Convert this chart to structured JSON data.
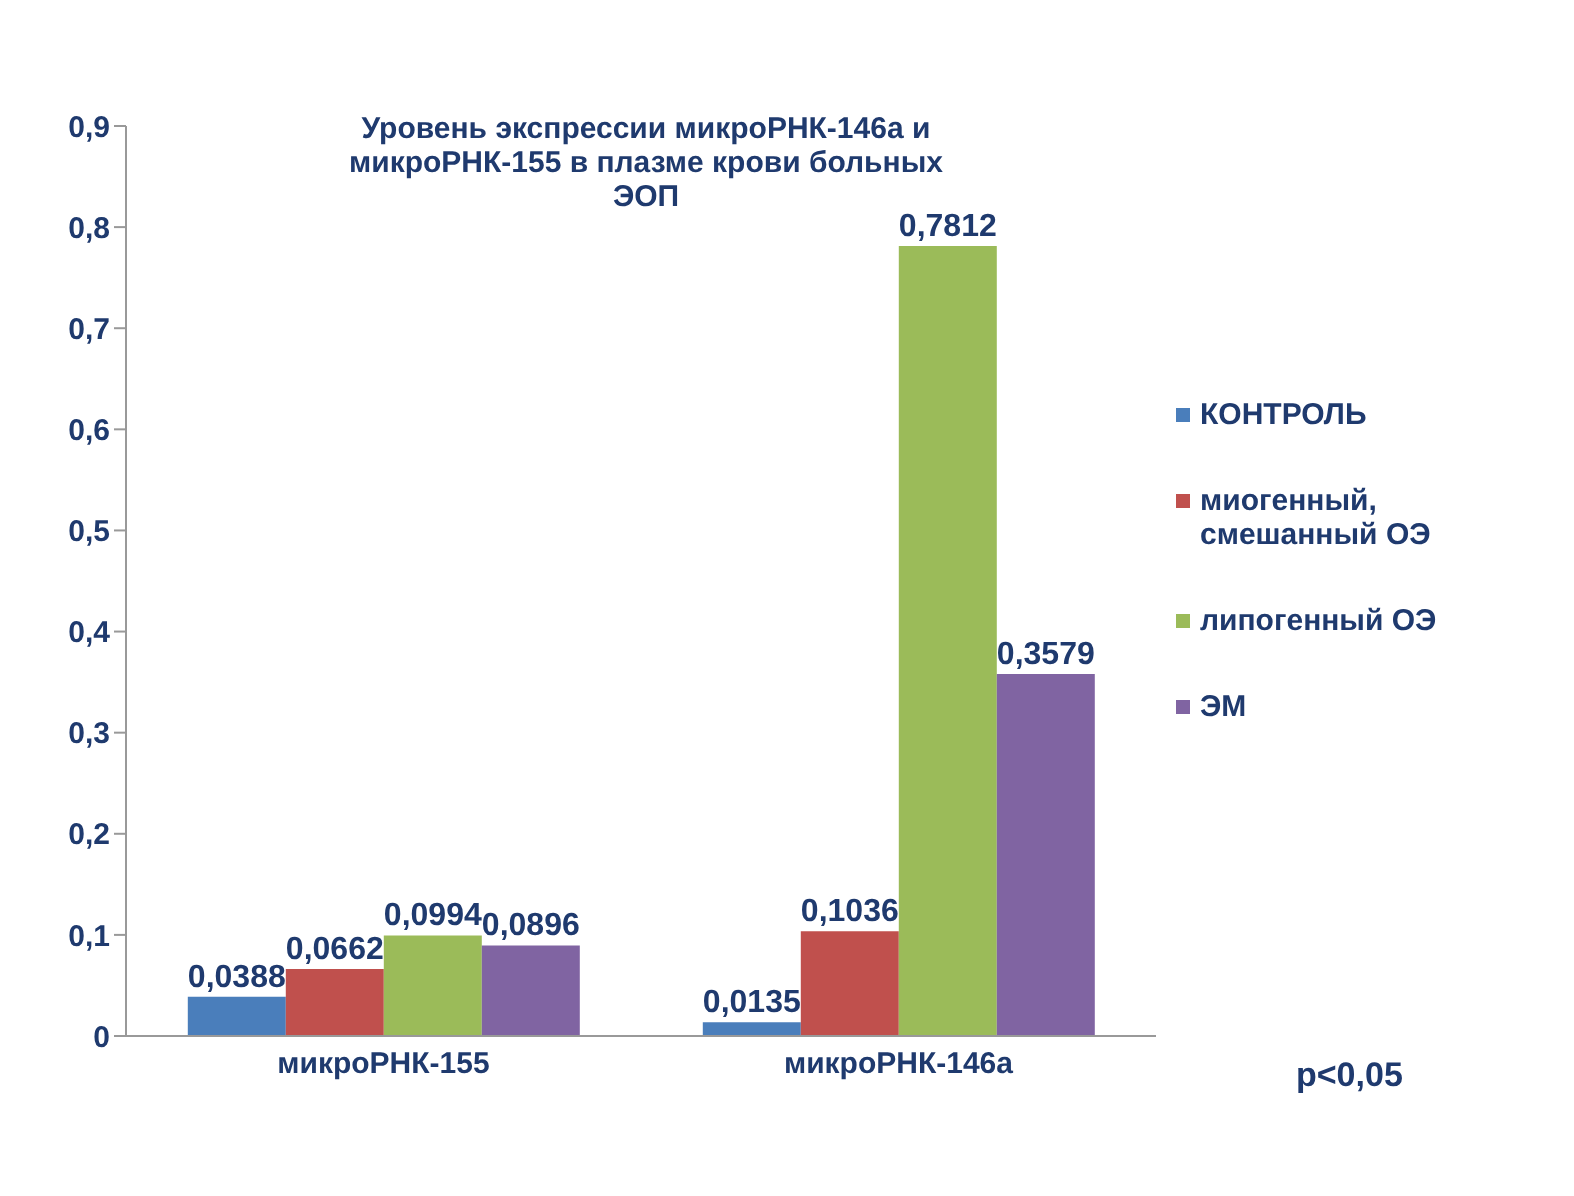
{
  "chart_data": {
    "type": "bar",
    "title": "Уровень экспрессии микроРНК-146а и микроРНК-155 в плазме крови больных ЭОП",
    "categories": [
      "микроРНК-155",
      "микроРНК-146а"
    ],
    "series": [
      {
        "name": "КОНТРОЛЬ",
        "color": "#4a7ebb",
        "values": [
          0.0388,
          0.0135
        ],
        "value_labels": [
          "0,0388",
          "0,0135"
        ]
      },
      {
        "name": "миогенный, смешанный ОЭ",
        "color": "#c0504d",
        "values": [
          0.0662,
          0.1036
        ],
        "value_labels": [
          "0,0662",
          "0,1036"
        ]
      },
      {
        "name": "липогенный ОЭ",
        "color": "#9bbb59",
        "values": [
          0.0994,
          0.7812
        ],
        "value_labels": [
          "0,0994",
          "0,7812"
        ]
      },
      {
        "name": "ЭМ",
        "color": "#8064a2",
        "values": [
          0.0896,
          0.3579
        ],
        "value_labels": [
          "0,0896",
          "0,3579"
        ]
      }
    ],
    "ylim": [
      0,
      0.9
    ],
    "yticks": [
      {
        "value": 0,
        "label": "0"
      },
      {
        "value": 0.1,
        "label": "0,1"
      },
      {
        "value": 0.2,
        "label": "0,2"
      },
      {
        "value": 0.3,
        "label": "0,3"
      },
      {
        "value": 0.4,
        "label": "0,4"
      },
      {
        "value": 0.5,
        "label": "0,5"
      },
      {
        "value": 0.6,
        "label": "0,6"
      },
      {
        "value": 0.7,
        "label": "0,7"
      },
      {
        "value": 0.8,
        "label": "0,8"
      },
      {
        "value": 0.9,
        "label": "0,9"
      }
    ],
    "legend": "right",
    "annotations": [
      "p<0,05"
    ]
  }
}
